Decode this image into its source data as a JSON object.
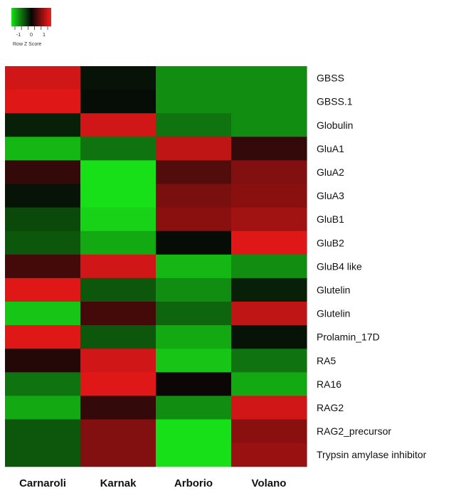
{
  "chart_data": {
    "type": "heatmap",
    "title": "",
    "xlabel": "",
    "ylabel": "",
    "columns": [
      "Carnaroli",
      "Karnak",
      "Arborio",
      "Volano"
    ],
    "rows": [
      "GBSS",
      "GBSS.1",
      "Globulin",
      "GluA1",
      "GluA2",
      "GluA3",
      "GluB1",
      "GluB2",
      "GluB4 like",
      "Glutelin",
      "Glutelin",
      "Prolamin_17D",
      "RA5",
      "RA16",
      "RAG2",
      "RAG2_precursor",
      "Trypsin amylase inhibitor"
    ],
    "values": [
      [
        1.3,
        -0.1,
        -1.0,
        -1.0
      ],
      [
        1.4,
        -0.05,
        -1.0,
        -1.0
      ],
      [
        -0.2,
        1.3,
        -0.8,
        -1.0
      ],
      [
        -1.3,
        -0.8,
        1.2,
        0.3
      ],
      [
        0.3,
        -1.8,
        0.5,
        0.8
      ],
      [
        -0.1,
        -1.8,
        0.75,
        0.85
      ],
      [
        -0.5,
        -1.5,
        0.85,
        1.0
      ],
      [
        -0.6,
        -1.2,
        -0.05,
        1.4
      ],
      [
        0.4,
        1.3,
        -1.3,
        -1.0
      ],
      [
        1.4,
        -0.6,
        -1.0,
        -0.2
      ],
      [
        -1.4,
        0.4,
        -0.7,
        1.2
      ],
      [
        1.4,
        -0.6,
        -1.2,
        -0.1
      ],
      [
        0.2,
        1.3,
        -1.4,
        -0.8
      ],
      [
        -0.8,
        1.4,
        0.05,
        -1.2
      ],
      [
        -1.2,
        0.3,
        -1.0,
        1.3
      ],
      [
        -0.6,
        0.8,
        -1.6,
        0.85
      ],
      [
        -0.6,
        0.8,
        -1.6,
        0.95
      ]
    ],
    "color_scale": {
      "min_color": "#18e018",
      "mid_color": "#050505",
      "max_color": "#ff1a1a",
      "domain": [
        -1.6,
        0,
        1.6
      ]
    },
    "legend": {
      "title": "Row Z Score",
      "ticks": [
        "-1",
        "0",
        "1"
      ],
      "placement": "top-left"
    },
    "grid": false
  }
}
